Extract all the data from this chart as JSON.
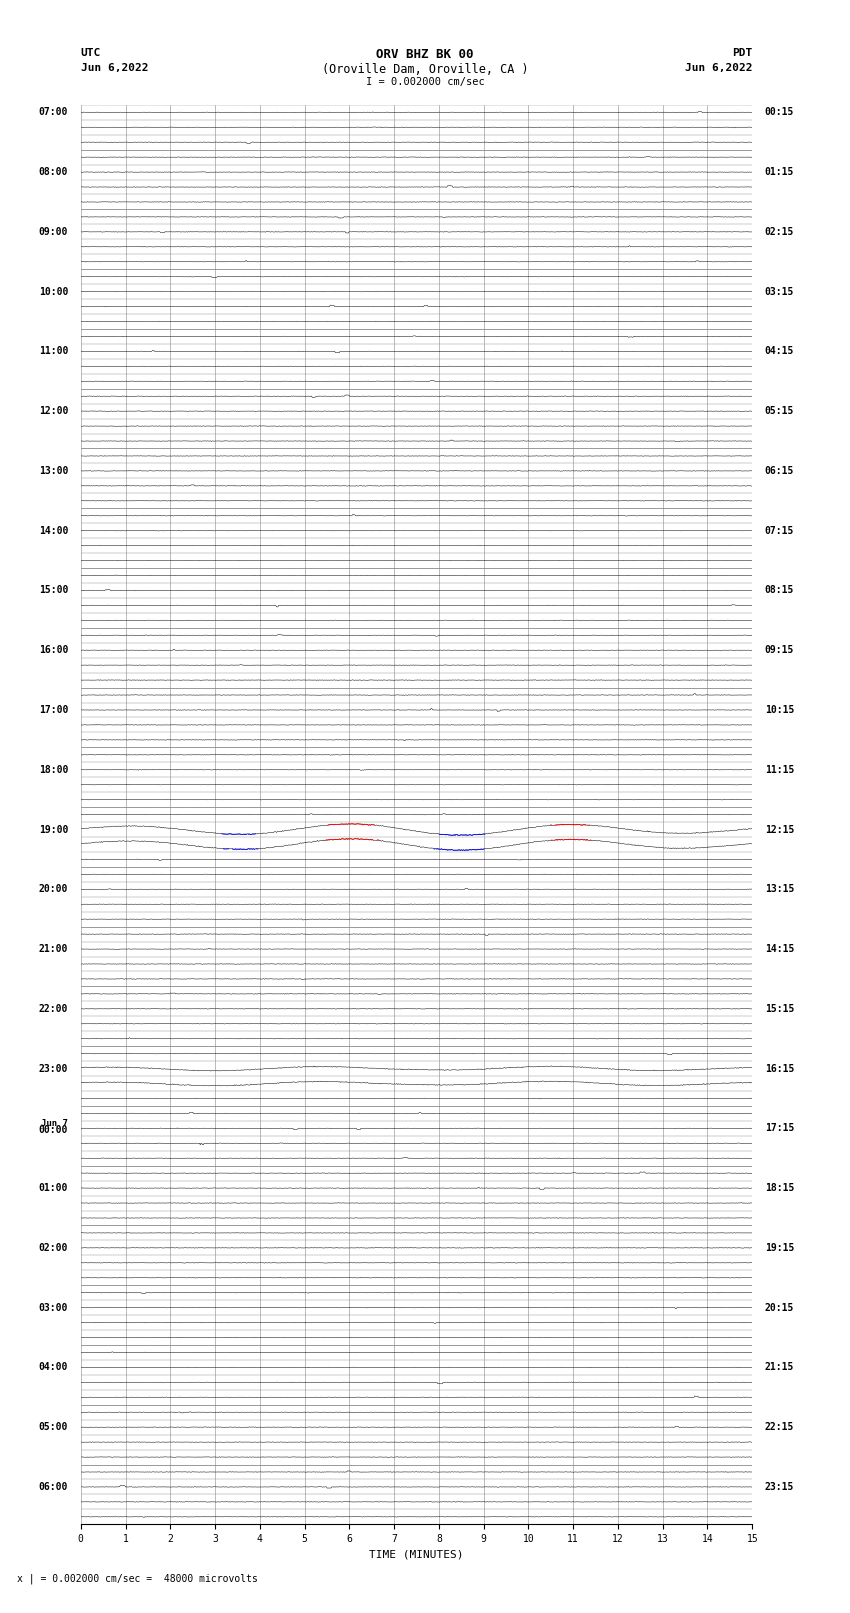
{
  "title_line1": "ORV BHZ BK 00",
  "title_line2": "(Oroville Dam, Oroville, CA )",
  "title_line3": "I = 0.002000 cm/sec",
  "left_label": "UTC",
  "left_date": "Jun 6,2022",
  "right_label": "PDT",
  "right_date": "Jun 6,2022",
  "xlabel": "TIME (MINUTES)",
  "bottom_note": "x | = 0.002000 cm/sec =  48000 microvolts",
  "xmin": 0,
  "xmax": 15,
  "background_color": "#ffffff",
  "trace_color_normal": "#000000",
  "trace_color_clip_pos": "#ff0000",
  "trace_color_clip_neg": "#0000ff",
  "grid_color": "#888888",
  "left_times_utc": [
    "07:00",
    "",
    "",
    "",
    "08:00",
    "",
    "",
    "",
    "09:00",
    "",
    "",
    "",
    "10:00",
    "",
    "",
    "",
    "11:00",
    "",
    "",
    "",
    "12:00",
    "",
    "",
    "",
    "13:00",
    "",
    "",
    "",
    "14:00",
    "",
    "",
    "",
    "15:00",
    "",
    "",
    "",
    "16:00",
    "",
    "",
    "",
    "17:00",
    "",
    "",
    "",
    "18:00",
    "",
    "",
    "",
    "19:00",
    "",
    "",
    "",
    "20:00",
    "",
    "",
    "",
    "21:00",
    "",
    "",
    "",
    "22:00",
    "",
    "",
    "",
    "23:00",
    "",
    "",
    "",
    "Jun 7\n00:00",
    "",
    "",
    "",
    "01:00",
    "",
    "",
    "",
    "02:00",
    "",
    "",
    "",
    "03:00",
    "",
    "",
    "",
    "04:00",
    "",
    "",
    "",
    "05:00",
    "",
    "",
    "",
    "06:00",
    "",
    ""
  ],
  "right_times_pdt": [
    "00:15",
    "",
    "",
    "",
    "01:15",
    "",
    "",
    "",
    "02:15",
    "",
    "",
    "",
    "03:15",
    "",
    "",
    "",
    "04:15",
    "",
    "",
    "",
    "05:15",
    "",
    "",
    "",
    "06:15",
    "",
    "",
    "",
    "07:15",
    "",
    "",
    "",
    "08:15",
    "",
    "",
    "",
    "09:15",
    "",
    "",
    "",
    "10:15",
    "",
    "",
    "",
    "11:15",
    "",
    "",
    "",
    "12:15",
    "",
    "",
    "",
    "13:15",
    "",
    "",
    "",
    "14:15",
    "",
    "",
    "",
    "15:15",
    "",
    "",
    "",
    "16:15",
    "",
    "",
    "",
    "17:15",
    "",
    "",
    "",
    "18:15",
    "",
    "",
    "",
    "19:15",
    "",
    "",
    "",
    "20:15",
    "",
    "",
    "",
    "21:15",
    "",
    "",
    "",
    "22:15",
    "",
    "",
    "",
    "23:15",
    "",
    ""
  ],
  "large_signal_rows": [
    48,
    49
  ],
  "medium_signal_rows": [
    64,
    65
  ],
  "noise_amp": 0.05,
  "signal_amp_large": 0.38,
  "signal_amp_medium": 0.25
}
